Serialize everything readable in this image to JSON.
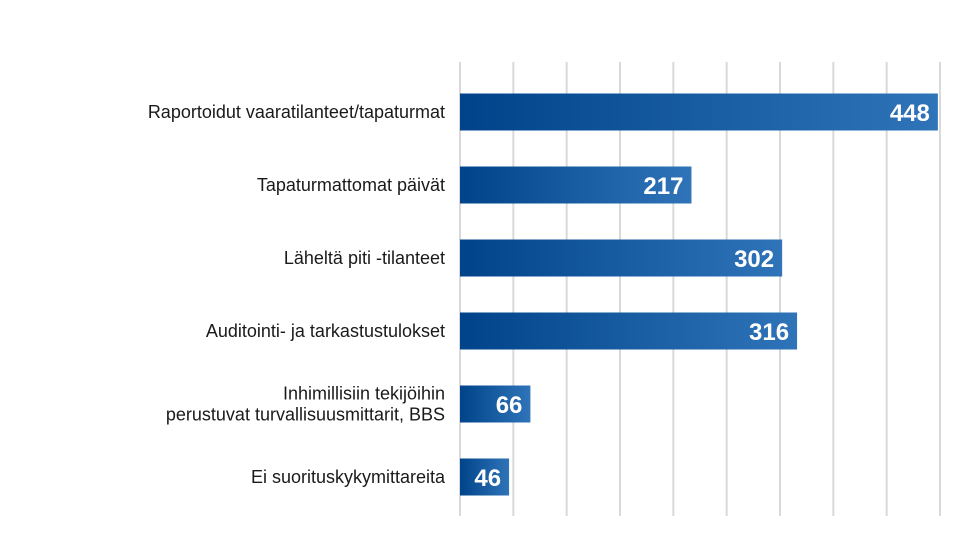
{
  "chart_data": {
    "type": "bar",
    "orientation": "horizontal",
    "categories": [
      "Raportoidut vaaratilanteet/tapaturmat",
      "Tapaturmattomat päivät",
      "Läheltä piti -tilanteet",
      "Auditointi- ja tarkastustulokset",
      [
        "Inhimillisiin tekijöihin",
        "perustuvat turvallisuusmittarit, BBS"
      ],
      "Ei suorituskykymittareita"
    ],
    "values": [
      448,
      217,
      302,
      316,
      66,
      46
    ],
    "xlim": [
      0,
      450
    ],
    "grid": true,
    "bar_color_start": "#00438a",
    "bar_color_end": "#2f74b8",
    "value_label_color": "#ffffff",
    "grid_color": "#d9d9d9"
  }
}
